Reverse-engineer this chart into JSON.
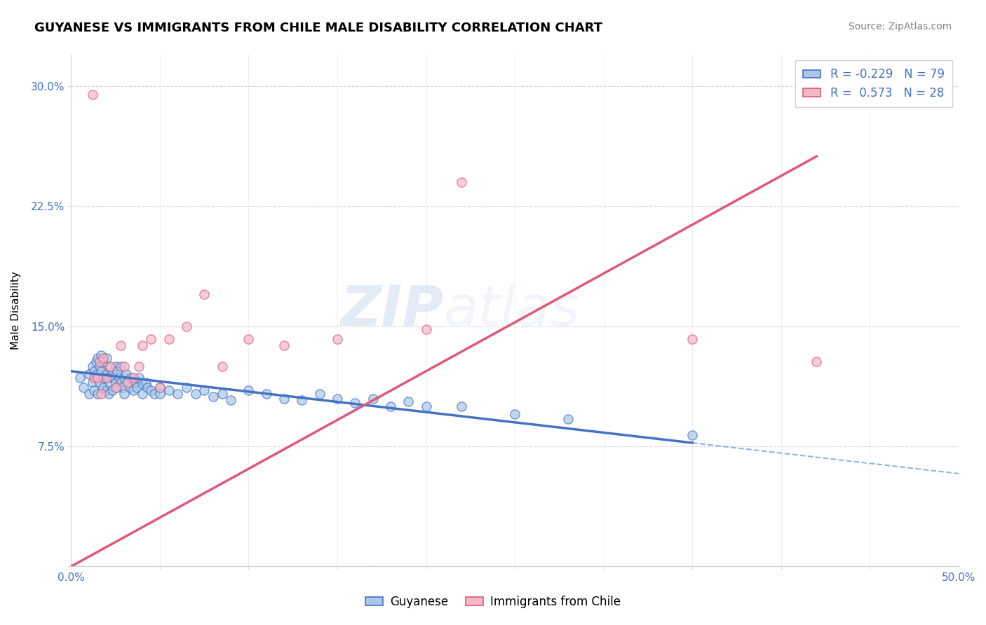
{
  "title": "GUYANESE VS IMMIGRANTS FROM CHILE MALE DISABILITY CORRELATION CHART",
  "source": "Source: ZipAtlas.com",
  "ylabel": "Male Disability",
  "xlim": [
    0.0,
    0.5
  ],
  "ylim": [
    0.0,
    0.32
  ],
  "xtick_positions": [
    0.0,
    0.05,
    0.1,
    0.15,
    0.2,
    0.25,
    0.3,
    0.35,
    0.4,
    0.45,
    0.5
  ],
  "xtick_labels": [
    "0.0%",
    "",
    "",
    "",
    "",
    "",
    "",
    "",
    "",
    "",
    "50.0%"
  ],
  "ytick_positions": [
    0.0,
    0.075,
    0.15,
    0.225,
    0.3
  ],
  "ytick_labels": [
    "",
    "7.5%",
    "15.0%",
    "22.5%",
    "30.0%"
  ],
  "legend_blue_R": "-0.229",
  "legend_blue_N": "79",
  "legend_pink_R": "0.573",
  "legend_pink_N": "28",
  "blue_fill": "#a8c8e8",
  "blue_edge": "#4472c4",
  "pink_fill": "#f4b8c8",
  "pink_edge": "#e05878",
  "blue_line_color": "#4472c4",
  "pink_line_color": "#e05878",
  "watermark_text": "ZIPatlas",
  "blue_line_x0": 0.0,
  "blue_line_y0": 0.122,
  "blue_line_x1": 0.5,
  "blue_line_y1": 0.058,
  "pink_line_x0": 0.0,
  "pink_line_y0": 0.0,
  "pink_line_x1": 0.5,
  "pink_line_y1": 0.305,
  "blue_x": [
    0.005,
    0.007,
    0.01,
    0.01,
    0.012,
    0.012,
    0.013,
    0.013,
    0.014,
    0.014,
    0.015,
    0.015,
    0.015,
    0.016,
    0.016,
    0.017,
    0.017,
    0.018,
    0.018,
    0.018,
    0.02,
    0.02,
    0.02,
    0.021,
    0.021,
    0.022,
    0.022,
    0.023,
    0.023,
    0.024,
    0.025,
    0.025,
    0.026,
    0.026,
    0.027,
    0.028,
    0.028,
    0.029,
    0.03,
    0.03,
    0.031,
    0.032,
    0.033,
    0.034,
    0.035,
    0.036,
    0.037,
    0.038,
    0.04,
    0.04,
    0.042,
    0.043,
    0.045,
    0.047,
    0.05,
    0.05,
    0.055,
    0.06,
    0.065,
    0.07,
    0.075,
    0.08,
    0.085,
    0.09,
    0.1,
    0.11,
    0.12,
    0.13,
    0.14,
    0.15,
    0.16,
    0.17,
    0.18,
    0.19,
    0.2,
    0.22,
    0.25,
    0.28,
    0.35
  ],
  "blue_y": [
    0.118,
    0.112,
    0.12,
    0.108,
    0.125,
    0.115,
    0.122,
    0.11,
    0.128,
    0.118,
    0.13,
    0.12,
    0.108,
    0.125,
    0.115,
    0.132,
    0.122,
    0.118,
    0.128,
    0.112,
    0.12,
    0.11,
    0.13,
    0.118,
    0.108,
    0.124,
    0.114,
    0.12,
    0.11,
    0.118,
    0.115,
    0.125,
    0.112,
    0.122,
    0.118,
    0.115,
    0.125,
    0.112,
    0.118,
    0.108,
    0.12,
    0.115,
    0.112,
    0.118,
    0.11,
    0.115,
    0.112,
    0.118,
    0.114,
    0.108,
    0.115,
    0.112,
    0.11,
    0.108,
    0.112,
    0.108,
    0.11,
    0.108,
    0.112,
    0.108,
    0.11,
    0.106,
    0.108,
    0.104,
    0.11,
    0.108,
    0.105,
    0.104,
    0.108,
    0.105,
    0.102,
    0.105,
    0.1,
    0.103,
    0.1,
    0.1,
    0.095,
    0.092,
    0.082
  ],
  "pink_x": [
    0.012,
    0.013,
    0.015,
    0.016,
    0.017,
    0.018,
    0.02,
    0.022,
    0.025,
    0.028,
    0.03,
    0.032,
    0.035,
    0.038,
    0.04,
    0.045,
    0.05,
    0.055,
    0.065,
    0.075,
    0.085,
    0.1,
    0.12,
    0.15,
    0.2,
    0.22,
    0.35,
    0.42
  ],
  "pink_y": [
    0.295,
    0.118,
    0.118,
    0.128,
    0.108,
    0.13,
    0.118,
    0.125,
    0.112,
    0.138,
    0.125,
    0.115,
    0.118,
    0.125,
    0.138,
    0.142,
    0.112,
    0.142,
    0.15,
    0.17,
    0.125,
    0.142,
    0.138,
    0.142,
    0.148,
    0.24,
    0.142,
    0.128
  ]
}
